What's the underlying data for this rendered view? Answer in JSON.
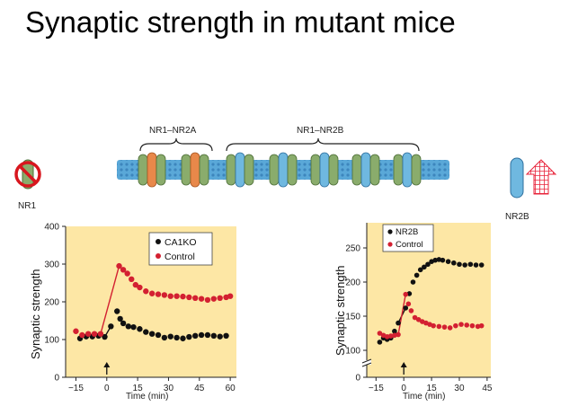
{
  "slide": {
    "title": "Synaptic strength in mutant mice"
  },
  "diagram": {
    "group1_label": "NR1–NR2A",
    "group2_label": "NR1–NR2B",
    "left_label": "NR1",
    "right_label": "NR2B",
    "colors": {
      "membrane": "#5aa8d8",
      "nr2a": "#e8884a",
      "nr2b": "#6fb8e0",
      "nr1": "#8aac6c"
    }
  },
  "chart_data": [
    {
      "type": "scatter",
      "ylabel": "Synaptic strength",
      "xlabel": "Time (min)",
      "xlim": [
        -20,
        63
      ],
      "ylim": [
        0,
        400
      ],
      "xticks": [
        "−15",
        "0",
        "15",
        "30",
        "45",
        "60"
      ],
      "yticks": [
        "0",
        "100",
        "200",
        "300",
        "400"
      ],
      "legend": [
        "CA1KO",
        "Control"
      ],
      "legend_position": "top-right",
      "series": [
        {
          "name": "CA1KO",
          "color": "#111111",
          "x": [
            -13,
            -10,
            -7,
            -4,
            -1,
            2,
            5,
            6.5,
            8,
            10.5,
            13,
            16,
            19,
            22,
            25,
            28,
            31,
            34,
            37,
            40,
            43,
            46,
            49,
            52,
            55,
            58
          ],
          "y": [
            103,
            108,
            108,
            110,
            107,
            135,
            175,
            155,
            143,
            135,
            133,
            128,
            120,
            115,
            112,
            105,
            108,
            105,
            103,
            107,
            110,
            112,
            112,
            110,
            108,
            110
          ]
        },
        {
          "name": "Control",
          "color": "#d32031",
          "x": [
            -15,
            -12,
            -9,
            -6,
            -3,
            6,
            8,
            10,
            12,
            14,
            16,
            19,
            22,
            25,
            28,
            31,
            34,
            37,
            40,
            43,
            46,
            49,
            52,
            55,
            58,
            60
          ],
          "y": [
            122,
            112,
            115,
            115,
            115,
            295,
            285,
            275,
            260,
            245,
            238,
            228,
            222,
            220,
            218,
            215,
            215,
            214,
            212,
            210,
            208,
            205,
            208,
            210,
            212,
            215
          ]
        }
      ],
      "arrow_at_x": 0
    },
    {
      "type": "scatter",
      "ylabel": "Synaptic strength",
      "xlabel": "Time (min)",
      "xlim": [
        -20,
        47
      ],
      "ylim": [
        0,
        280
      ],
      "axis_break": true,
      "xticks": [
        "−15",
        "0",
        "15",
        "30",
        "45"
      ],
      "yticks": [
        "0",
        "100",
        "150",
        "200",
        "250"
      ],
      "legend": [
        "NR2B",
        "Control"
      ],
      "legend_position": "top-left",
      "series": [
        {
          "name": "NR2B",
          "color": "#111111",
          "x": [
            -13,
            -11,
            -9,
            -7,
            -5,
            -3,
            1,
            3,
            5,
            7,
            9,
            11,
            13,
            15,
            17,
            19,
            21,
            24,
            27,
            30,
            33,
            36,
            39,
            42
          ],
          "y": [
            112,
            118,
            116,
            118,
            128,
            140,
            162,
            183,
            200,
            210,
            218,
            222,
            226,
            230,
            232,
            233,
            232,
            230,
            228,
            226,
            225,
            226,
            225,
            225
          ]
        },
        {
          "name": "Control",
          "color": "#d32031",
          "x": [
            -13,
            -11,
            -9,
            -7,
            -5,
            -3,
            1,
            2.5,
            4,
            6,
            8,
            10,
            12,
            14,
            16,
            19,
            22,
            25,
            28,
            31,
            34,
            37,
            40,
            42
          ],
          "y": [
            125,
            122,
            120,
            121,
            122,
            123,
            182,
            168,
            158,
            148,
            145,
            142,
            140,
            138,
            136,
            135,
            134,
            133,
            136,
            138,
            137,
            136,
            135,
            136
          ]
        }
      ],
      "arrow_at_x": 0
    }
  ]
}
